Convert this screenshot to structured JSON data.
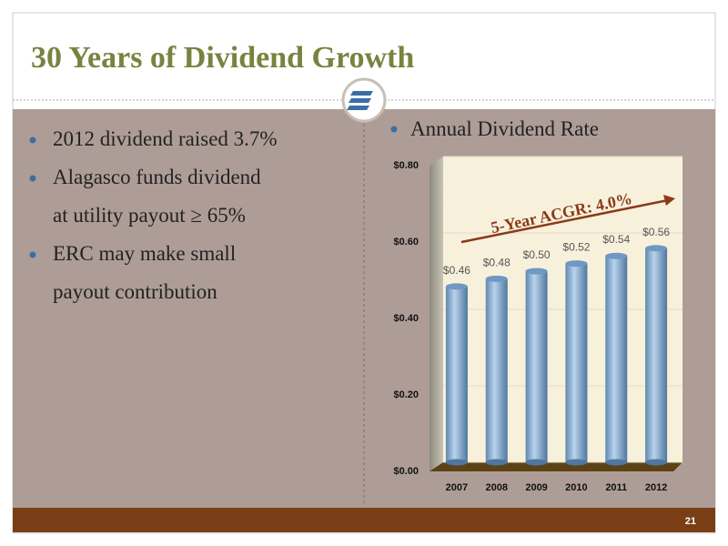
{
  "slide": {
    "title": "30 Years of Dividend Growth",
    "bullets": [
      [
        "2012 dividend raised 3.7%"
      ],
      [
        "Alagasco funds dividend",
        "at utility payout ≥ 65%"
      ],
      [
        "ERC may make small",
        "payout contribution"
      ]
    ],
    "page_number": "21"
  },
  "chart_data": {
    "type": "bar",
    "title": "Annual Dividend Rate",
    "categories": [
      "2007",
      "2008",
      "2009",
      "2010",
      "2011",
      "2012"
    ],
    "values": [
      0.46,
      0.48,
      0.5,
      0.52,
      0.54,
      0.56
    ],
    "value_labels": [
      "$0.46",
      "$0.48",
      "$0.50",
      "$0.52",
      "$0.54",
      "$0.56"
    ],
    "color": "#8fb4d8",
    "ylim": [
      0,
      0.8
    ],
    "yticks": [
      {
        "value": 0,
        "label": "$0.00"
      },
      {
        "value": 0.2,
        "label": "$0.20"
      },
      {
        "value": 0.4,
        "label": "$0.40"
      },
      {
        "value": 0.6,
        "label": "$0.60"
      },
      {
        "value": 0.8,
        "label": "$0.80"
      }
    ],
    "grid": true,
    "annotation": "5-Year ACGR: 4.0%"
  }
}
